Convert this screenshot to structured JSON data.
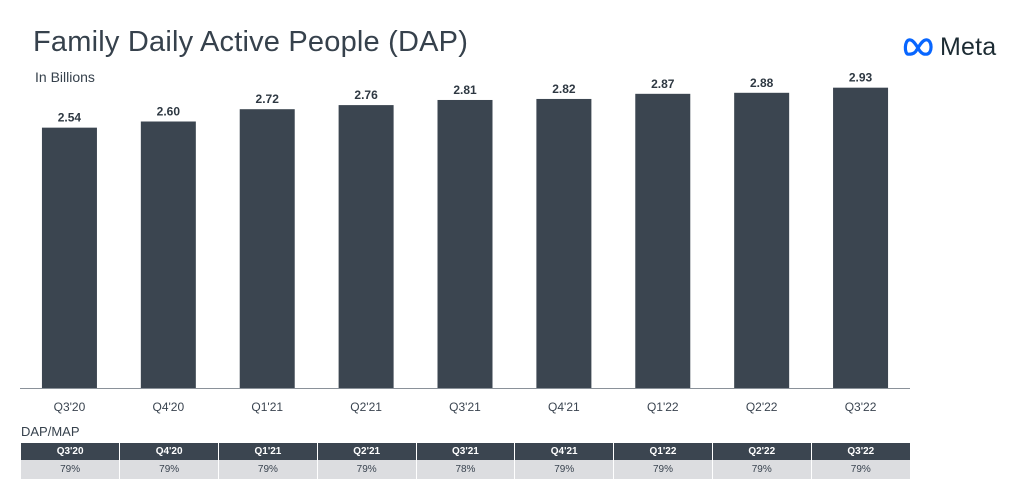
{
  "header": {
    "title": "Family Daily Active People (DAP)",
    "subtitle": "In Billions",
    "logo_text": "Meta"
  },
  "colors": {
    "bar": "#3b4550",
    "axis": "#8a9199",
    "table_header": "#3b4550",
    "table_row": "#dcdde0",
    "logo_blue": "#0866ff"
  },
  "chart_data": {
    "type": "bar",
    "categories": [
      "Q3'20",
      "Q4'20",
      "Q1'21",
      "Q2'21",
      "Q3'21",
      "Q4'21",
      "Q1'22",
      "Q2'22",
      "Q3'22"
    ],
    "values": [
      2.54,
      2.6,
      2.72,
      2.76,
      2.81,
      2.82,
      2.87,
      2.88,
      2.93
    ],
    "value_labels": [
      "2.54",
      "2.60",
      "2.72",
      "2.76",
      "2.81",
      "2.82",
      "2.87",
      "2.88",
      "2.93"
    ],
    "title": "Family Daily Active People (DAP)",
    "subtitle": "In Billions",
    "xlabel": "",
    "ylabel": "",
    "ylim": [
      0,
      3.2
    ],
    "grid": false,
    "legend": "none"
  },
  "table": {
    "title": "DAP/MAP",
    "headers": [
      "Q3'20",
      "Q4'20",
      "Q1'21",
      "Q2'21",
      "Q3'21",
      "Q4'21",
      "Q1'22",
      "Q2'22",
      "Q3'22"
    ],
    "values": [
      "79%",
      "79%",
      "79%",
      "79%",
      "78%",
      "79%",
      "79%",
      "79%",
      "79%"
    ]
  }
}
